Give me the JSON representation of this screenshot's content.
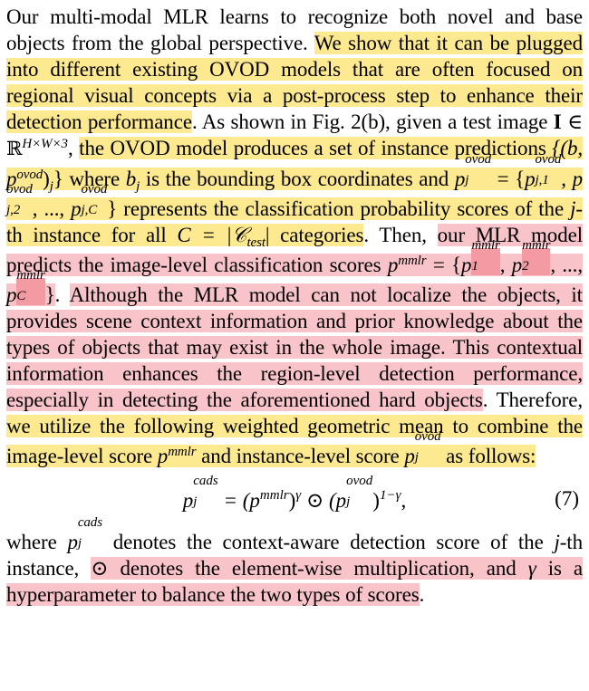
{
  "paragraph1": {
    "t1": "Our multi-modal MLR learns to recognize both novel and base objects from the global perspective. ",
    "y1": "We show that it can be plugged into different existing OVOD models that are often focused on regional visual concepts via a post-process step to enhance their detection performance",
    "t2": ". As shown in Fig. 2(b), given a test image ",
    "bold_I": "I",
    "in_sym": " ∈ ",
    "R": "ℝ",
    "R_sup": "H×W×3",
    "t3": ",",
    "y2": "the OVOD model produces a set of instance predictions",
    "pred_set": "{(b, p",
    "pred_sup": "ovod",
    "pred_close": ")",
    "pred_sub": "j",
    "pred_brace": "}",
    "t4": " where ",
    "bj": "b",
    "bj_sub": "j",
    "t5": " is the bounding box coordinates and",
    "p_sym": "p",
    "p_sup": "ovod",
    "p_sub": "j",
    "eq_sign": " = {",
    "p1_sup": "ovod",
    "p1_sub": "j,1",
    "p2_sup": "ovod",
    "p2_sub": "j,2",
    "dots": ", ..., ",
    "pc_sup": "ovod",
    "pc_sub": "j,C",
    "close_brace": "}",
    "y3": " represents the classification probability scores of the ",
    "j": "j",
    "y4": "-th instance for all ",
    "C_eq": "C = |",
    "C_cal": "𝒞",
    "C_sub": "test",
    "C_end": "|",
    "y5": "categories",
    "t6": ". Then, ",
    "p1": "our MLR model predicts the image-level classification scores ",
    "pm": "p",
    "pm_sup": "mmlr",
    "pm_eq": " = {",
    "pm1_sup": "mmlr",
    "pm1_sub": "1",
    "pm2_sup": "mmlr",
    "pm2_sub": "2",
    "pm_dots": ", ..., ",
    "pmc_sup": "mmlr",
    "pmc_sub": "C",
    "pm_close": "}",
    "t7": ".",
    "p2": "Although the MLR model can not localize the objects, it provides scene context information and prior knowledge about the types of objects that may exist in the whole image. This contextual information enhances the region-level detection performance, especially in detecting the aforementioned hard objects",
    "t8": ". Therefore, ",
    "y6": "we utilize the following weighted geometric mean to combine the image-level score ",
    "w_p": "p",
    "w_sup": "mmlr",
    "y7": " and instance-level score ",
    "w2_p": "p",
    "w2_sup": "ovod",
    "w2_sub": "j",
    "y8": " as follows:"
  },
  "equation": {
    "lhs": "p",
    "lhs_sup": "cads",
    "lhs_sub": "j",
    "eq": " = (p",
    "m_sup": "mmlr",
    "gamma": ")",
    "g_sup": "γ",
    "odot": " ⊙ (p",
    "o_sup": "ovod",
    "o_sub": "j",
    "close": ")",
    "exp": "1−γ",
    "comma": ",",
    "number": "(7)"
  },
  "paragraph2": {
    "t1": "where ",
    "p": "p",
    "p_sup": "cads",
    "p_sub": "j",
    "t2": " denotes the context-aware detection score of the ",
    "j": "j",
    "t3": "-th instance, ",
    "p1": "⊙ denotes the element-wise multiplication, and ",
    "gamma": "γ",
    "p2": " is a hyperparameter to balance the two types of scores",
    "t4": "."
  }
}
